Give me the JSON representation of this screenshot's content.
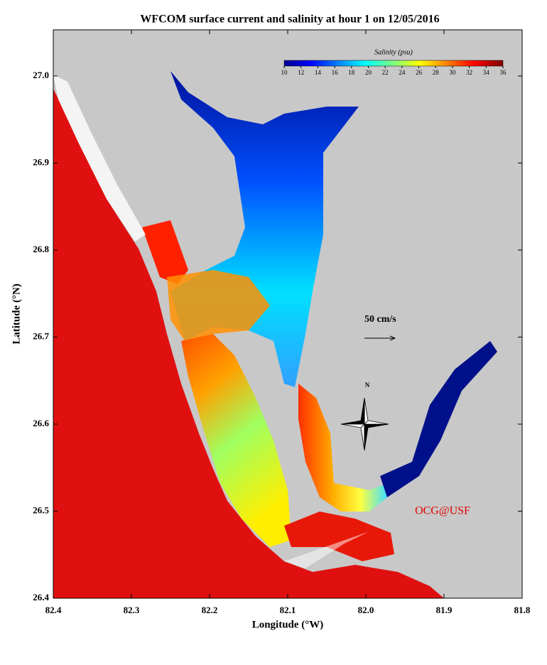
{
  "chart_data": {
    "type": "map",
    "title": "WFCOM surface current and salinity at hour 1 on 12/05/2016",
    "xlabel": "Longitude (°W)",
    "ylabel": "Latitude (°N)",
    "xlim": [
      82.4,
      81.8
    ],
    "xticks": [
      82.4,
      82.3,
      82.2,
      82.1,
      {
        "value": 82,
        "label": "82.0"
      },
      81.9,
      81.8
    ],
    "ylim": [
      26.4,
      27.053
    ],
    "yticks": [
      26.4,
      26.5,
      26.6,
      26.7,
      26.8,
      26.9,
      {
        "value": 27,
        "label": "27.0"
      }
    ],
    "colorbar": {
      "label": "Salinity (psu)",
      "lim": [
        10,
        36
      ],
      "ticks": [
        10,
        12,
        14,
        16,
        18,
        20,
        22,
        24,
        26,
        28,
        30,
        32,
        34,
        36
      ]
    },
    "annotations": {
      "scale": "50 cm/s",
      "north": "N",
      "credit": "OCG@USF"
    }
  }
}
